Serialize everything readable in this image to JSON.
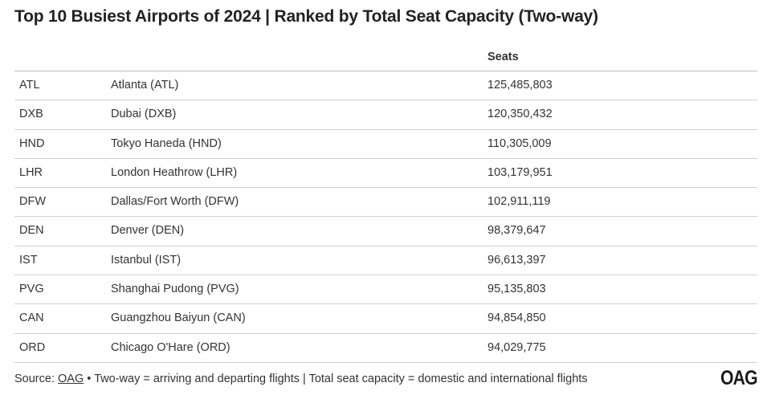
{
  "chart_data": {
    "type": "table",
    "title": "Top 10 Busiest Airports of 2024 | Ranked by Total Seat Capacity (Two-way)",
    "columns": [
      "",
      "",
      "Seats"
    ],
    "rows": [
      {
        "code": "ATL",
        "name": "Atlanta (ATL)",
        "seats": "125,485,803"
      },
      {
        "code": "DXB",
        "name": "Dubai (DXB)",
        "seats": "120,350,432"
      },
      {
        "code": "HND",
        "name": "Tokyo Haneda (HND)",
        "seats": "110,305,009"
      },
      {
        "code": "LHR",
        "name": "London Heathrow (LHR)",
        "seats": "103,179,951"
      },
      {
        "code": "DFW",
        "name": "Dallas/Fort Worth (DFW)",
        "seats": "102,911,119"
      },
      {
        "code": "DEN",
        "name": "Denver (DEN)",
        "seats": "98,379,647"
      },
      {
        "code": "IST",
        "name": "Istanbul (IST)",
        "seats": "96,613,397"
      },
      {
        "code": "PVG",
        "name": "Shanghai Pudong (PVG)",
        "seats": "95,135,803"
      },
      {
        "code": "CAN",
        "name": "Guangzhou Baiyun (CAN)",
        "seats": "94,854,850"
      },
      {
        "code": "ORD",
        "name": "Chicago O'Hare (ORD)",
        "seats": "94,029,775"
      }
    ]
  },
  "footer": {
    "source_prefix": "Source: ",
    "source_link": "OAG",
    "note": " • Two-way = arriving and departing flights | Total seat capacity = domestic and international flights"
  },
  "logo": {
    "text": "OAG"
  }
}
